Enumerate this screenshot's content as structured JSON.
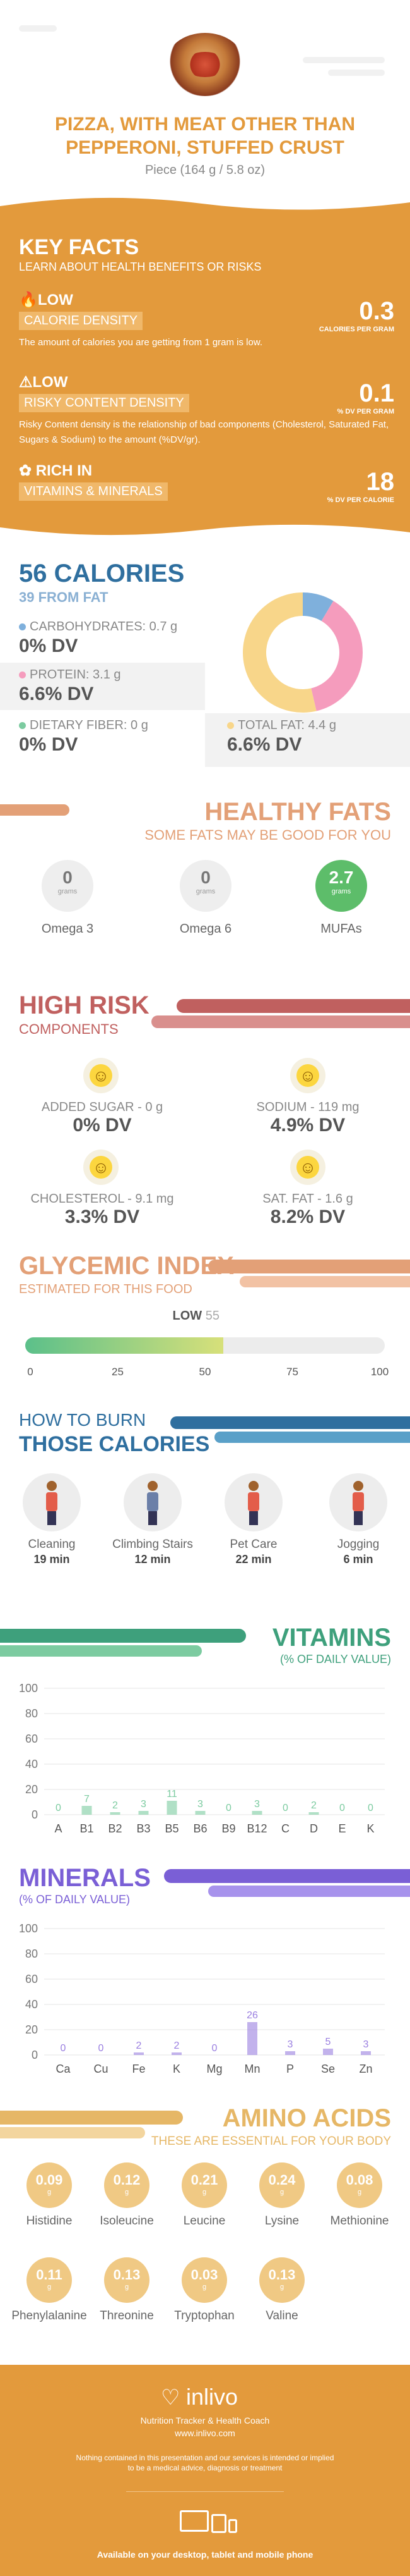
{
  "header": {
    "title_line1": "PIZZA, WITH MEAT OTHER THAN",
    "title_line2": "PEPPERONI, STUFFED CRUST",
    "serving": "Piece (164 g / 5.8 oz)"
  },
  "key_facts": {
    "title": "KEY FACTS",
    "subtitle": "LEARN ABOUT HEALTH BENEFITS OR RISKS",
    "items": [
      {
        "level": "LOW",
        "tag": "CALORIE DENSITY",
        "desc": "The amount of calories you are getting from 1 gram is low.",
        "value": "0.3",
        "unit": "CALORIES PER GRAM",
        "icon": "flame-icon"
      },
      {
        "level": "LOW",
        "tag": "RISKY CONTENT DENSITY",
        "desc": "Risky Content density is the relationship of bad components (Cholesterol, Saturated Fat, Sugars & Sodium) to the amount (%DV/gr).",
        "value": "0.1",
        "unit": "% DV PER GRAM",
        "icon": "warning-icon"
      },
      {
        "level": "RICH  IN",
        "tag": "VITAMINS & MINERALS",
        "desc": "",
        "value": "18",
        "unit": "% DV PER CALORIE",
        "icon": "leaf-icon"
      }
    ]
  },
  "calories": {
    "title": "56 CALORIES",
    "subtitle": "39 FROM FAT",
    "macros": [
      {
        "label": "CARBOHYDRATES: 0.7 g",
        "dv": "0% DV",
        "color": "#7fb0dc"
      },
      {
        "label": "PROTEIN: 3.1 g",
        "dv": "6.6% DV",
        "color": "#f59cbd"
      },
      {
        "label": "DIETARY FIBER: 0 g",
        "dv": "0% DV",
        "color": "#7ccba0"
      },
      {
        "label": "TOTAL FAT: 4.4 g",
        "dv": "6.6% DV",
        "color": "#f8d68a"
      }
    ],
    "donut": [
      {
        "name": "carbohydrates",
        "value": 0.7,
        "color": "#7fb0dc"
      },
      {
        "name": "protein",
        "value": 3.1,
        "color": "#f59cbd"
      },
      {
        "name": "fat",
        "value": 4.4,
        "color": "#f8d68a"
      }
    ]
  },
  "healthy_fats": {
    "title": "HEALTHY FATS",
    "subtitle": "SOME FATS MAY BE GOOD FOR YOU",
    "items": [
      {
        "value": "0",
        "unit": "grams",
        "name": "Omega 3",
        "highlight": false
      },
      {
        "value": "0",
        "unit": "grams",
        "name": "Omega 6",
        "highlight": false
      },
      {
        "value": "2.7",
        "unit": "grams",
        "name": "MUFAs",
        "highlight": true
      }
    ]
  },
  "high_risk": {
    "title": "HIGH RISK",
    "subtitle": "COMPONENTS",
    "items": [
      {
        "label": "ADDED SUGAR - 0 g",
        "dv": "0% DV",
        "face": "grin-icon"
      },
      {
        "label": "SODIUM - 119 mg",
        "dv": "4.9% DV",
        "face": "smile-icon"
      },
      {
        "label": "CHOLESTEROL - 9.1 mg",
        "dv": "3.3% DV",
        "face": "smile-icon"
      },
      {
        "label": "SAT. FAT - 1.6 g",
        "dv": "8.2% DV",
        "face": "smile-icon"
      }
    ]
  },
  "glycemic": {
    "title": "GLYCEMIC INDEX",
    "subtitle": "ESTIMATED FOR THIS FOOD",
    "level": "LOW",
    "value": 55,
    "value_text": "55",
    "ticks": [
      "0",
      "25",
      "50",
      "75",
      "100"
    ]
  },
  "burn": {
    "title1": "HOW TO BURN",
    "title2": "THOSE CALORIES",
    "activities": [
      {
        "name": "Cleaning",
        "time": "19 min"
      },
      {
        "name": "Climbing Stairs",
        "time": "12 min"
      },
      {
        "name": "Pet Care",
        "time": "22 min"
      },
      {
        "name": "Jogging",
        "time": "6 min"
      }
    ]
  },
  "chart_data": [
    {
      "type": "bar",
      "title": "VITAMINS",
      "subtitle": "(% OF DAILY VALUE)",
      "categories": [
        "A",
        "B1",
        "B2",
        "B3",
        "B5",
        "B6",
        "B9",
        "B12",
        "C",
        "D",
        "E",
        "K"
      ],
      "values": [
        0,
        7,
        2,
        3,
        11,
        3,
        0,
        3,
        0,
        2,
        0,
        0
      ],
      "ylim": [
        0,
        100
      ],
      "yticks": [
        "0",
        "20",
        "40",
        "60",
        "80",
        "100"
      ],
      "color": "#7ccba0"
    },
    {
      "type": "bar",
      "title": "MINERALS",
      "subtitle": "(% OF DAILY VALUE)",
      "categories": [
        "Ca",
        "Cu",
        "Fe",
        "K",
        "Mg",
        "Mn",
        "P",
        "Se",
        "Zn"
      ],
      "values": [
        0,
        0,
        2,
        2,
        0,
        26,
        3,
        5,
        3
      ],
      "ylim": [
        0,
        100
      ],
      "yticks": [
        "0",
        "20",
        "40",
        "60",
        "80",
        "100"
      ],
      "color": "#9a7fe0"
    }
  ],
  "amino": {
    "title": "AMINO ACIDS",
    "subtitle": "THESE ARE ESSENTIAL FOR YOUR BODY",
    "unit": "g",
    "items": [
      {
        "name": "Histidine",
        "value": "0.09"
      },
      {
        "name": "Isoleucine",
        "value": "0.12"
      },
      {
        "name": "Leucine",
        "value": "0.21"
      },
      {
        "name": "Lysine",
        "value": "0.24"
      },
      {
        "name": "Methionine",
        "value": "0.08"
      },
      {
        "name": "Phenylalanine",
        "value": "0.11"
      },
      {
        "name": "Threonine",
        "value": "0.13"
      },
      {
        "name": "Tryptophan",
        "value": "0.03"
      },
      {
        "name": "Valine",
        "value": "0.13"
      }
    ]
  },
  "footer": {
    "logo": "inlivo",
    "tagline": "Nutrition Tracker & Health Coach",
    "url": "www.inlivo.com",
    "disclaimer1": "Nothing contained in this presentation and our services is intended or implied",
    "disclaimer2": "to be a medical advice, diagnosis or treatment",
    "available": "Available on your desktop, tablet and mobile phone"
  }
}
